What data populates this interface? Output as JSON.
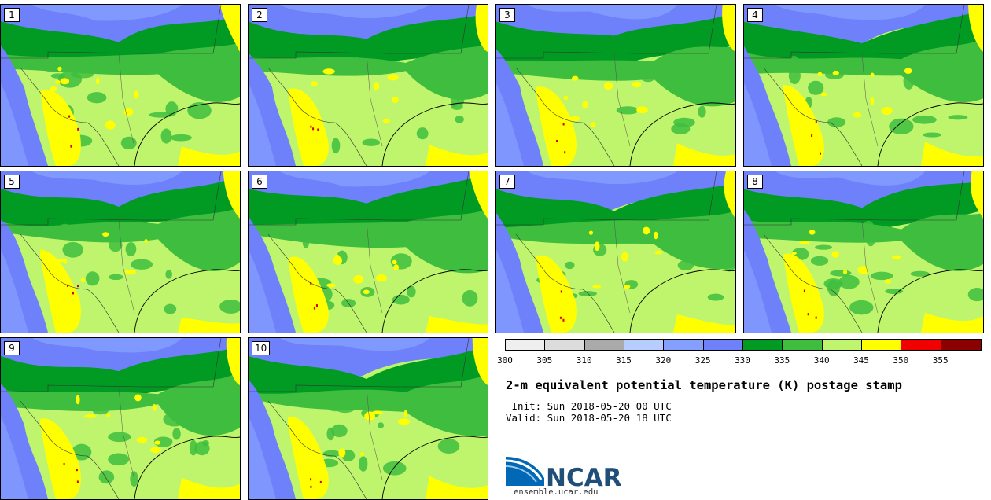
{
  "panels": [
    {
      "label": "1"
    },
    {
      "label": "2"
    },
    {
      "label": "3"
    },
    {
      "label": "4"
    },
    {
      "label": "5"
    },
    {
      "label": "6"
    },
    {
      "label": "7"
    },
    {
      "label": "8"
    },
    {
      "label": "9"
    },
    {
      "label": "10"
    }
  ],
  "colorbar": {
    "colors": [
      "#efefef",
      "#dcdcdc",
      "#aaaaaa",
      "#b7ccff",
      "#859fff",
      "#6f81fa",
      "#019b23",
      "#3ebd3e",
      "#bff56c",
      "#ffff00",
      "#f00000",
      "#8b0000"
    ],
    "ticks": [
      "300",
      "305",
      "310",
      "315",
      "320",
      "325",
      "330",
      "335",
      "340",
      "345",
      "350",
      "355"
    ]
  },
  "title": "2-m equivalent potential temperature (K) postage stamp",
  "init": " Init: Sun 2018-05-20 00 UTC",
  "valid": "Valid: Sun 2018-05-20 18 UTC",
  "logo": {
    "text": "NCAR",
    "url": "ensemble.ucar.edu"
  }
}
